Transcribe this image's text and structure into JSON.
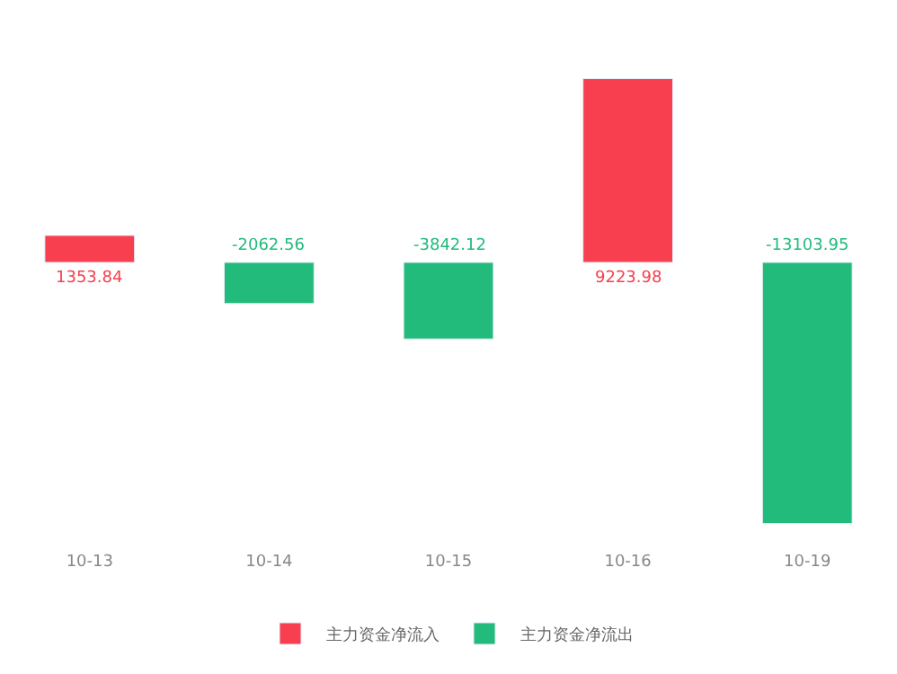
{
  "chart_data": {
    "type": "bar",
    "categories": [
      "10-13",
      "10-14",
      "10-15",
      "10-16",
      "10-19"
    ],
    "series": [
      {
        "name": "主力资金净流入",
        "color": "#f73f4f",
        "values": [
          1353.84,
          null,
          null,
          9223.98,
          null
        ]
      },
      {
        "name": "主力资金净流出",
        "color": "#22bb7c",
        "values": [
          null,
          -2062.56,
          -3842.12,
          null,
          -13103.95
        ]
      }
    ],
    "data_labels": true,
    "legend": "bottom"
  }
}
